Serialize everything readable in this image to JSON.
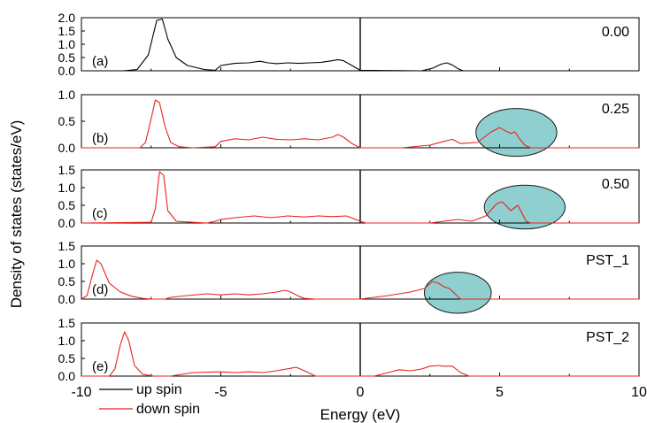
{
  "chart_data": {
    "type": "line",
    "xlabel": "Energy (eV)",
    "ylabel": "Density of states (states/eV)",
    "xlim": [
      -10,
      10
    ],
    "xticks": [
      -10,
      -5,
      0,
      5,
      10
    ],
    "legend": {
      "placement": "bottom-left",
      "entries": [
        {
          "name": "up spin",
          "color": "#000000"
        },
        {
          "name": "down spin",
          "color": "#e8221b"
        }
      ]
    },
    "panels": [
      {
        "panel_label": "(a)",
        "annotation": "0.00",
        "color": "#000000",
        "ylim": [
          0,
          2.0
        ],
        "yticks": [
          "0.0",
          "0.5",
          "1.0",
          "1.5",
          "2.0"
        ],
        "x": [
          -10,
          -8.5,
          -8.0,
          -7.6,
          -7.3,
          -7.1,
          -6.9,
          -6.6,
          -6.2,
          -5.6,
          -5.2,
          -5.0,
          -4.5,
          -4.0,
          -3.6,
          -3.3,
          -3.0,
          -2.6,
          -2.2,
          -1.8,
          -1.4,
          -1.0,
          -0.8,
          -0.6,
          -0.3,
          0.0,
          2.2,
          2.6,
          2.9,
          3.1,
          3.3,
          3.5,
          3.7,
          10
        ],
        "y": [
          0,
          0,
          0.05,
          0.6,
          1.9,
          1.95,
          1.2,
          0.5,
          0.2,
          0.05,
          0.02,
          0.2,
          0.28,
          0.3,
          0.36,
          0.3,
          0.27,
          0.3,
          0.28,
          0.3,
          0.32,
          0.38,
          0.42,
          0.38,
          0.2,
          0.02,
          0.0,
          0.1,
          0.25,
          0.3,
          0.22,
          0.08,
          0.0,
          0
        ]
      },
      {
        "panel_label": "(b)",
        "annotation": "0.25",
        "color": "#e8221b",
        "ylim": [
          0,
          1.0
        ],
        "yticks": [
          "0.0",
          "0.5",
          "1.0"
        ],
        "x": [
          -10,
          -7.9,
          -7.7,
          -7.5,
          -7.35,
          -7.2,
          -7.0,
          -6.8,
          -6.5,
          -6.0,
          -5.2,
          -5.0,
          -4.5,
          -4.0,
          -3.5,
          -3.0,
          -2.5,
          -2.0,
          -1.5,
          -1.0,
          -0.8,
          -0.6,
          -0.3,
          0.0,
          1.5,
          2.5,
          3.0,
          3.3,
          3.6,
          4.2,
          4.7,
          5.0,
          5.2,
          5.4,
          5.55,
          5.7,
          5.9,
          6.1,
          10
        ],
        "y": [
          0,
          0,
          0.1,
          0.55,
          0.9,
          0.85,
          0.4,
          0.1,
          0.02,
          0,
          0.02,
          0.12,
          0.17,
          0.15,
          0.2,
          0.16,
          0.15,
          0.17,
          0.15,
          0.2,
          0.25,
          0.2,
          0.08,
          0.0,
          0.0,
          0.05,
          0.12,
          0.16,
          0.08,
          0.1,
          0.3,
          0.38,
          0.32,
          0.27,
          0.3,
          0.18,
          0.05,
          0.0,
          0
        ]
      },
      {
        "panel_label": "(c)",
        "annotation": "0.50",
        "color": "#e8221b",
        "ylim": [
          0,
          1.5
        ],
        "yticks": [
          "0.0",
          "0.5",
          "1.0",
          "1.5"
        ],
        "x": [
          -10,
          -7.5,
          -7.35,
          -7.2,
          -7.05,
          -6.9,
          -6.6,
          -6.0,
          -5.5,
          -5.2,
          -5.0,
          -4.5,
          -3.8,
          -3.2,
          -2.6,
          -2.0,
          -1.5,
          -1.0,
          -0.5,
          0.0,
          0.2,
          2.5,
          3.0,
          3.5,
          4.0,
          4.5,
          4.9,
          5.1,
          5.4,
          5.65,
          5.8,
          5.95,
          6.1,
          10
        ],
        "y": [
          0,
          0.02,
          0.4,
          1.45,
          1.35,
          0.35,
          0.05,
          0.02,
          0.0,
          0.05,
          0.1,
          0.15,
          0.2,
          0.15,
          0.2,
          0.17,
          0.2,
          0.18,
          0.2,
          0.05,
          0.0,
          0.0,
          0.05,
          0.1,
          0.05,
          0.2,
          0.55,
          0.6,
          0.35,
          0.5,
          0.28,
          0.05,
          0.0,
          0
        ]
      },
      {
        "panel_label": "(d)",
        "annotation": "PST_1",
        "color": "#e8221b",
        "ylim": [
          0,
          1.5
        ],
        "yticks": [
          "0.0",
          "0.5",
          "1.0",
          "1.5"
        ],
        "x": [
          -10,
          -9.8,
          -9.6,
          -9.45,
          -9.3,
          -9.0,
          -8.6,
          -8.2,
          -7.8,
          -7.5,
          -7.0,
          -6.8,
          -6.2,
          -5.5,
          -5.0,
          -4.5,
          -4.0,
          -3.5,
          -3.0,
          -2.7,
          -2.5,
          -2.2,
          -2.0,
          -1.6,
          0.0,
          1.0,
          1.8,
          2.3,
          2.6,
          2.8,
          3.0,
          3.2,
          3.4,
          3.6,
          10
        ],
        "y": [
          0,
          0.1,
          0.7,
          1.1,
          1.0,
          0.45,
          0.2,
          0.08,
          0.02,
          0,
          0,
          0.05,
          0.1,
          0.15,
          0.12,
          0.15,
          0.12,
          0.15,
          0.2,
          0.25,
          0.2,
          0.08,
          0.02,
          0.0,
          0.0,
          0.1,
          0.2,
          0.3,
          0.5,
          0.45,
          0.35,
          0.3,
          0.15,
          0.0,
          0
        ]
      },
      {
        "panel_label": "(e)",
        "annotation": "PST_2",
        "color": "#e8221b",
        "ylim": [
          0,
          1.5
        ],
        "yticks": [
          "0.0",
          "0.5",
          "1.0",
          "1.5"
        ],
        "x": [
          -10,
          -9.0,
          -8.8,
          -8.6,
          -8.45,
          -8.3,
          -8.1,
          -7.8,
          -7.4,
          -6.8,
          -6.0,
          -5.0,
          -4.5,
          -4.0,
          -3.5,
          -3.0,
          -2.5,
          -2.3,
          -2.0,
          -1.6,
          0.0,
          0.5,
          1.0,
          1.4,
          1.8,
          2.2,
          2.5,
          2.8,
          3.0,
          3.3,
          3.6,
          3.9,
          10
        ],
        "y": [
          0,
          0,
          0.2,
          0.9,
          1.25,
          1.0,
          0.3,
          0.05,
          0.0,
          0.0,
          0.1,
          0.12,
          0.1,
          0.12,
          0.1,
          0.15,
          0.22,
          0.25,
          0.15,
          0.0,
          0.0,
          0.0,
          0.1,
          0.18,
          0.15,
          0.2,
          0.28,
          0.3,
          0.28,
          0.28,
          0.1,
          0.0,
          0
        ]
      }
    ],
    "highlight_ellipses": [
      {
        "panel": 1,
        "center_x": 5.6,
        "center_y": 0.29,
        "rx_ev": 1.45,
        "ry_y": 0.45,
        "color": "#8fcfcf"
      },
      {
        "panel": 2,
        "center_x": 5.9,
        "center_y": 0.45,
        "rx_ev": 1.45,
        "ry_y": 0.62,
        "color": "#8fcfcf"
      },
      {
        "panel": 3,
        "center_x": 3.5,
        "center_y": 0.18,
        "rx_ev": 1.2,
        "ry_y": 0.58,
        "color": "#8fcfcf"
      }
    ]
  }
}
